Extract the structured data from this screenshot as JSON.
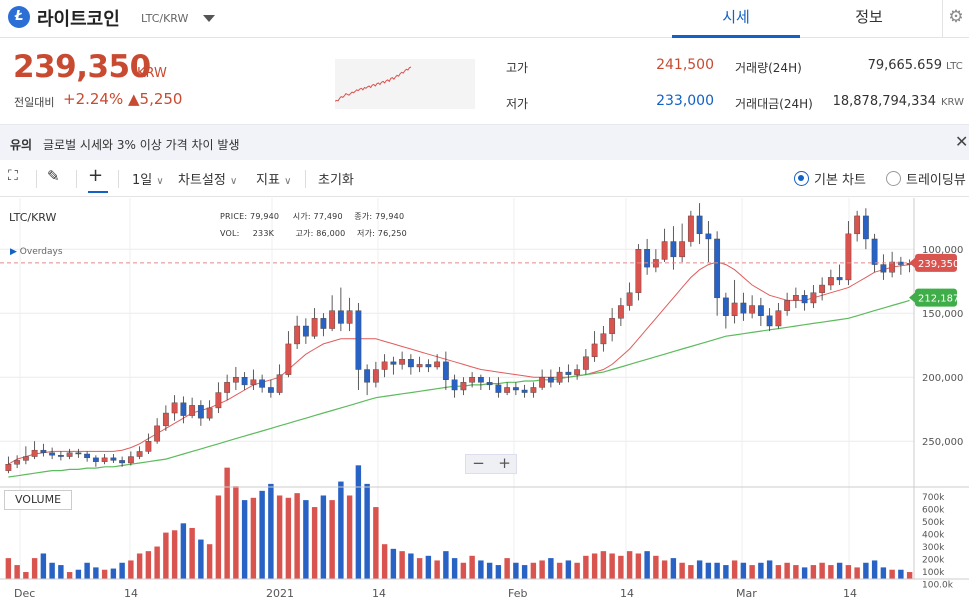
{
  "header": {
    "coin_name": "라이트코인",
    "pair": "LTC/KRW",
    "logo_letter": "Ł",
    "tabs": [
      {
        "label": "시세",
        "active": true
      },
      {
        "label": "정보",
        "active": false
      }
    ]
  },
  "summary": {
    "price": "239,350",
    "price_unit": "KRW",
    "change_label": "전일대비",
    "change_rate": "+2.24%",
    "change_amount": "▲5,250",
    "high_label": "고가",
    "high_value": "241,500",
    "low_label": "저가",
    "low_value": "233,000",
    "volume_label": "거래량(24H)",
    "volume_value": "79,665.659",
    "volume_unit": "LTC",
    "amount_label": "거래대금(24H)",
    "amount_value": "18,878,794,334",
    "amount_unit": "KRW"
  },
  "notice": {
    "tag": "유의",
    "text": "글로벌 시세와 3% 이상 가격 차이 발생"
  },
  "toolbar": {
    "interval": "1일",
    "chart_settings": "차트설정",
    "indicators": "지표",
    "reset": "초기화",
    "basic_chart": "기본 차트",
    "tradingview": "트레이딩뷰"
  },
  "chart": {
    "symbol_label": "LTC/KRW",
    "overlays_label": "Overdays",
    "volume_label": "VOLUME",
    "ohlc": {
      "price_label": "PRICE:",
      "price": "79,940",
      "open_label": "시가:",
      "open": "77,490",
      "close_label": "종가:",
      "close": "79,940",
      "vol_label": "VOL:",
      "vol": "233K",
      "high_label": "고가:",
      "high": "86,000",
      "low_label": "저가:",
      "low": "76,250"
    },
    "price_ticks": [
      "250,000",
      "200,000",
      "150,000",
      "100,000"
    ],
    "volume_ticks": [
      "700k",
      "600k",
      "500k",
      "400k",
      "300k",
      "200k",
      "100k",
      "100.0k"
    ],
    "date_ticks": [
      "Dec",
      "14",
      "2021",
      "14",
      "Feb",
      "14",
      "Mar",
      "14"
    ],
    "last_price_tag": "239,350",
    "ma_tag": "212,187",
    "colors": {
      "up": "#d9534f",
      "down": "#2762c4",
      "ma_short": "#e05c5c",
      "ma_long": "#5dbb5d",
      "price_up_text": "#c84a31",
      "price_down_text": "#1261c4"
    }
  },
  "chart_data": {
    "type": "candlestick",
    "x_axis_labels": [
      "Dec",
      "14",
      "2021",
      "14",
      "Feb",
      "14",
      "Mar",
      "14"
    ],
    "y_axis_ticks": [
      100000,
      150000,
      200000,
      250000
    ],
    "ylim": [
      65000,
      290000
    ],
    "candles": [
      [
        77,
        82,
        88,
        75
      ],
      [
        82,
        85,
        89,
        79
      ],
      [
        85,
        88,
        96,
        82
      ],
      [
        88,
        93,
        100,
        86
      ],
      [
        93,
        91,
        98,
        88
      ],
      [
        91,
        89,
        95,
        86
      ],
      [
        89,
        88,
        92,
        85
      ],
      [
        88,
        91,
        94,
        86
      ],
      [
        91,
        90,
        94,
        87
      ],
      [
        90,
        87,
        92,
        84
      ],
      [
        87,
        84,
        89,
        80
      ],
      [
        84,
        87,
        90,
        82
      ],
      [
        87,
        85,
        90,
        83
      ],
      [
        85,
        83,
        88,
        80
      ],
      [
        83,
        88,
        92,
        81
      ],
      [
        88,
        92,
        96,
        86
      ],
      [
        92,
        100,
        106,
        90
      ],
      [
        100,
        112,
        118,
        98
      ],
      [
        112,
        122,
        128,
        108
      ],
      [
        122,
        130,
        136,
        116
      ],
      [
        130,
        120,
        135,
        114
      ],
      [
        120,
        128,
        134,
        118
      ],
      [
        128,
        118,
        132,
        112
      ],
      [
        118,
        126,
        132,
        116
      ],
      [
        126,
        138,
        146,
        122
      ],
      [
        138,
        146,
        152,
        132
      ],
      [
        146,
        150,
        158,
        140
      ],
      [
        150,
        144,
        154,
        140
      ],
      [
        144,
        148,
        156,
        140
      ],
      [
        148,
        142,
        152,
        138
      ],
      [
        142,
        138,
        148,
        134
      ],
      [
        138,
        152,
        160,
        136
      ],
      [
        152,
        176,
        186,
        150
      ],
      [
        176,
        190,
        198,
        172
      ],
      [
        190,
        182,
        196,
        176
      ],
      [
        182,
        196,
        204,
        180
      ],
      [
        196,
        188,
        200,
        182
      ],
      [
        188,
        202,
        214,
        186
      ],
      [
        202,
        192,
        220,
        186
      ],
      [
        192,
        202,
        212,
        186
      ],
      [
        202,
        156,
        208,
        140
      ],
      [
        156,
        146,
        160,
        136
      ],
      [
        146,
        156,
        162,
        142
      ],
      [
        156,
        162,
        168,
        150
      ],
      [
        162,
        160,
        166,
        152
      ],
      [
        160,
        164,
        170,
        156
      ],
      [
        164,
        158,
        168,
        152
      ],
      [
        158,
        160,
        166,
        154
      ],
      [
        160,
        158,
        164,
        154
      ],
      [
        158,
        162,
        168,
        156
      ],
      [
        162,
        148,
        170,
        140
      ],
      [
        148,
        140,
        152,
        134
      ],
      [
        140,
        146,
        150,
        136
      ],
      [
        146,
        150,
        154,
        142
      ],
      [
        150,
        146,
        152,
        140
      ],
      [
        146,
        144,
        150,
        140
      ],
      [
        144,
        138,
        150,
        134
      ],
      [
        138,
        142,
        146,
        136
      ],
      [
        142,
        140,
        146,
        136
      ],
      [
        140,
        138,
        144,
        134
      ],
      [
        138,
        142,
        146,
        134
      ],
      [
        142,
        150,
        156,
        140
      ],
      [
        150,
        146,
        156,
        142
      ],
      [
        146,
        154,
        158,
        144
      ],
      [
        154,
        152,
        160,
        146
      ],
      [
        152,
        156,
        160,
        148
      ],
      [
        156,
        166,
        172,
        152
      ],
      [
        166,
        176,
        186,
        162
      ],
      [
        176,
        184,
        190,
        170
      ],
      [
        184,
        196,
        204,
        178
      ],
      [
        196,
        206,
        212,
        190
      ],
      [
        206,
        216,
        224,
        202
      ],
      [
        216,
        250,
        254,
        210
      ],
      [
        250,
        236,
        258,
        230
      ],
      [
        236,
        242,
        250,
        232
      ],
      [
        242,
        256,
        266,
        240
      ],
      [
        256,
        244,
        268,
        234
      ],
      [
        244,
        256,
        270,
        240
      ],
      [
        256,
        276,
        280,
        252
      ],
      [
        276,
        262,
        286,
        254
      ],
      [
        262,
        258,
        272,
        240
      ],
      [
        258,
        212,
        264,
        198
      ],
      [
        212,
        198,
        216,
        188
      ],
      [
        198,
        208,
        226,
        192
      ],
      [
        208,
        200,
        216,
        194
      ],
      [
        200,
        206,
        214,
        196
      ],
      [
        206,
        198,
        212,
        190
      ],
      [
        198,
        190,
        204,
        186
      ],
      [
        190,
        202,
        208,
        188
      ],
      [
        202,
        210,
        216,
        198
      ],
      [
        210,
        214,
        220,
        204
      ],
      [
        214,
        208,
        218,
        202
      ],
      [
        208,
        216,
        222,
        204
      ],
      [
        216,
        222,
        228,
        210
      ],
      [
        222,
        228,
        234,
        218
      ],
      [
        228,
        226,
        238,
        222
      ],
      [
        226,
        262,
        272,
        222
      ],
      [
        262,
        276,
        280,
        256
      ],
      [
        276,
        258,
        282,
        250
      ],
      [
        258,
        238,
        262,
        232
      ],
      [
        238,
        232,
        246,
        226
      ],
      [
        232,
        240,
        248,
        228
      ],
      [
        240,
        238,
        244,
        230
      ],
      [
        238,
        239,
        242,
        232
      ]
    ],
    "volume": [
      18,
      12,
      6,
      18,
      22,
      14,
      12,
      6,
      8,
      14,
      10,
      8,
      9,
      14,
      16,
      22,
      24,
      28,
      40,
      42,
      48,
      44,
      34,
      30,
      72,
      96,
      80,
      68,
      70,
      76,
      82,
      72,
      70,
      74,
      68,
      62,
      72,
      68,
      84,
      72,
      98,
      82,
      62,
      30,
      26,
      24,
      22,
      18,
      20,
      16,
      24,
      18,
      14,
      20,
      16,
      14,
      12,
      18,
      14,
      12,
      14,
      16,
      18,
      14,
      16,
      14,
      20,
      22,
      24,
      22,
      20,
      24,
      22,
      24,
      20,
      16,
      18,
      14,
      12,
      16,
      14,
      14,
      12,
      16,
      14,
      12,
      14,
      16,
      12,
      14,
      12,
      10,
      12,
      14,
      12,
      14,
      12,
      10,
      14,
      16,
      10,
      8,
      8,
      6
    ],
    "volume_max": 750,
    "ma_short": [
      82,
      86,
      88,
      90,
      91,
      92,
      92,
      92,
      92,
      92,
      92,
      92,
      92,
      93,
      95,
      98,
      102,
      106,
      110,
      114,
      118,
      122,
      124,
      126,
      129,
      132,
      136,
      140,
      144,
      146,
      148,
      150,
      156,
      162,
      168,
      172,
      176,
      178,
      180,
      180,
      180,
      180,
      180,
      178,
      176,
      174,
      172,
      170,
      168,
      166,
      164,
      162,
      160,
      158,
      156,
      155,
      154,
      153,
      152,
      151,
      150,
      150,
      150,
      150,
      150,
      151,
      152,
      154,
      156,
      160,
      166,
      172,
      180,
      188,
      196,
      204,
      212,
      220,
      228,
      234,
      238,
      240,
      238,
      234,
      228,
      222,
      218,
      214,
      212,
      210,
      210,
      210,
      212,
      214,
      216,
      218,
      220,
      224,
      228,
      232,
      234,
      236,
      237,
      238
    ],
    "ma_long": [
      72,
      73,
      74,
      75,
      76,
      77,
      77,
      78,
      78,
      79,
      79,
      80,
      80,
      81,
      82,
      83,
      84,
      85,
      86,
      88,
      90,
      92,
      94,
      96,
      98,
      100,
      102,
      104,
      106,
      108,
      110,
      112,
      114,
      116,
      118,
      120,
      122,
      124,
      126,
      128,
      130,
      132,
      134,
      135,
      136,
      137,
      138,
      139,
      140,
      141,
      142,
      143,
      143,
      144,
      144,
      145,
      145,
      146,
      146,
      147,
      147,
      148,
      148,
      149,
      150,
      151,
      152,
      153,
      154,
      156,
      158,
      160,
      162,
      164,
      166,
      168,
      170,
      172,
      174,
      176,
      178,
      180,
      182,
      183,
      184,
      185,
      186,
      187,
      188,
      189,
      190,
      191,
      192,
      193,
      194,
      195,
      196,
      198,
      200,
      202,
      204,
      206,
      208,
      210
    ],
    "sparkline": [
      10,
      12,
      11,
      18,
      22,
      20,
      24,
      30,
      28,
      26,
      30,
      34,
      32,
      36,
      40,
      38,
      42,
      44,
      40,
      46,
      44,
      48,
      50,
      46,
      52,
      54,
      50,
      56,
      58,
      54,
      60,
      62,
      58,
      64,
      66,
      62,
      70,
      72,
      68,
      74,
      78,
      76,
      82,
      86,
      84,
      90,
      94,
      92,
      98,
      100
    ]
  }
}
